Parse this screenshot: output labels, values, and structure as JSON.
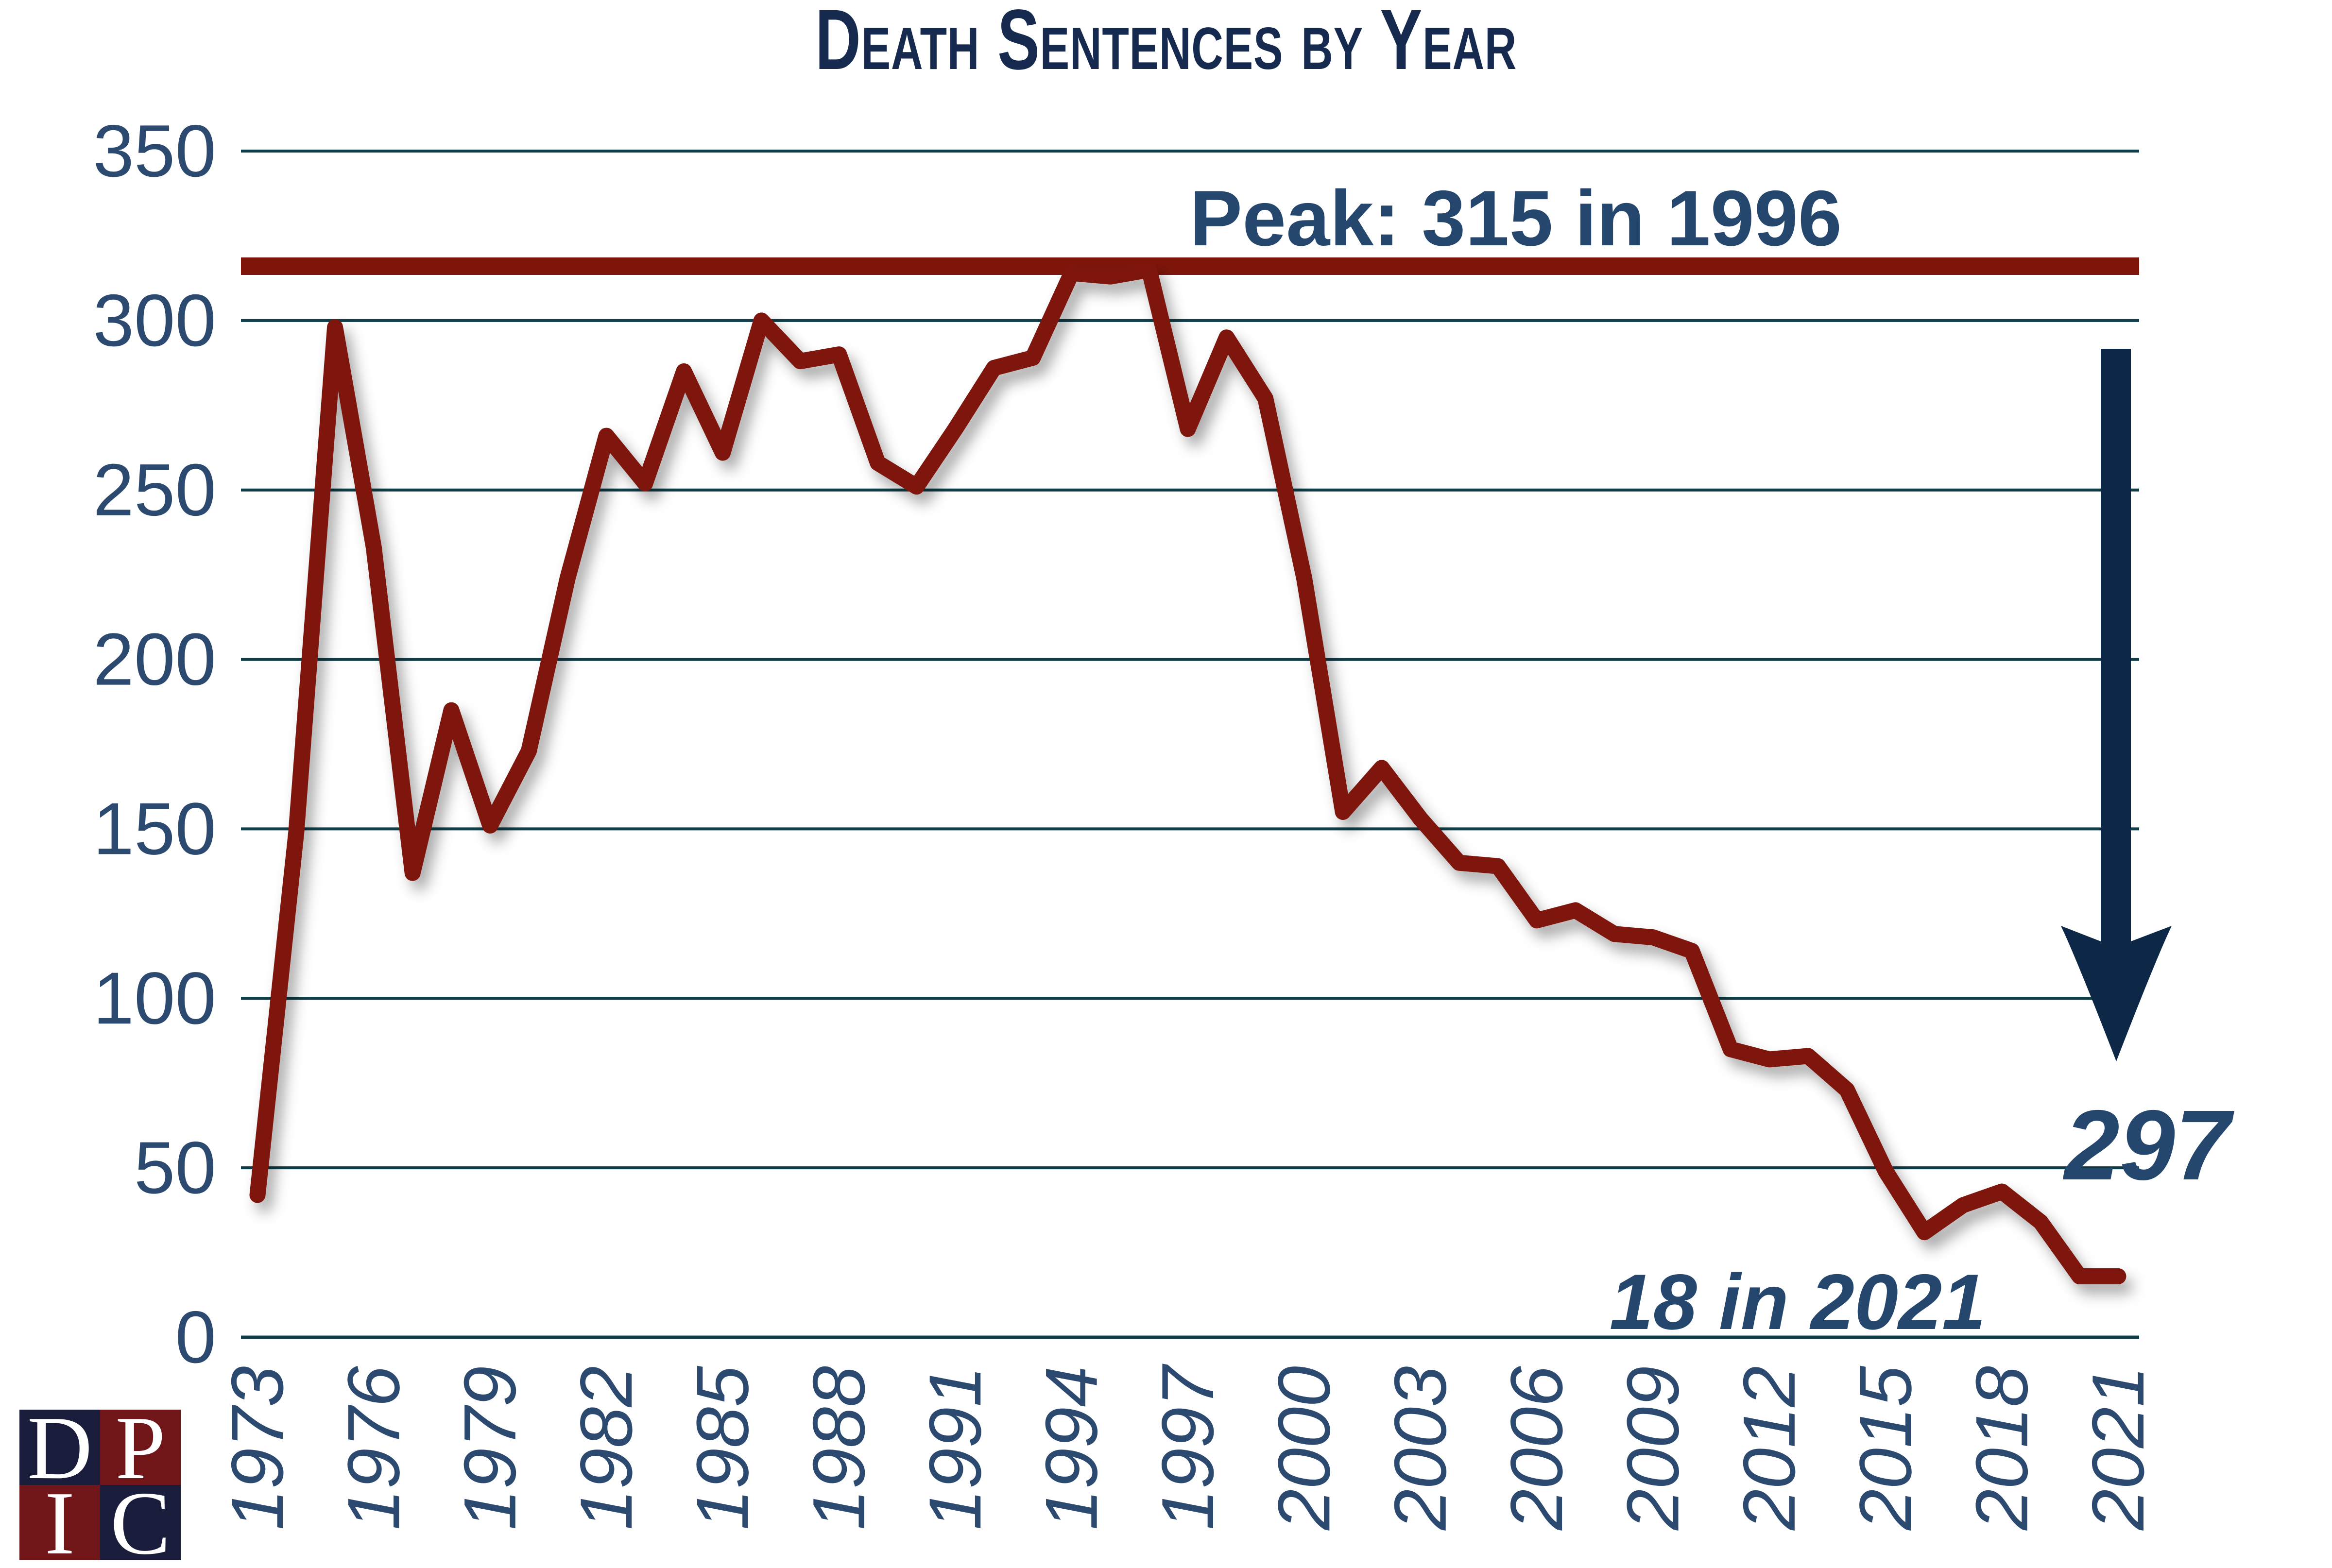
{
  "title": "Death Sentences by Year",
  "annotations": {
    "peak_label": "Peak: 315 in 1996",
    "drop_value": "297",
    "latest_label": "18 in 2021"
  },
  "logo": {
    "letters": [
      "D",
      "P",
      "I",
      "C"
    ]
  },
  "colors": {
    "line_red": "#7e150a",
    "peak_line_red": "#7e150a",
    "gridline_teal": "#0f3d48",
    "title_navy": "#152a4e",
    "axis_label_blue": "#2c4a70",
    "annotation_blue": "#26476d",
    "arrow_navy": "#0d2847",
    "logo_navy": "#191d3b",
    "logo_red": "#701518",
    "background": "#ffffff"
  },
  "chart_data": {
    "type": "line",
    "title": "Death Sentences by Year",
    "series_name": "Death Sentences",
    "x": [
      1973,
      1974,
      1975,
      1976,
      1977,
      1978,
      1979,
      1980,
      1981,
      1982,
      1983,
      1984,
      1985,
      1986,
      1987,
      1988,
      1989,
      1990,
      1991,
      1992,
      1993,
      1994,
      1995,
      1996,
      1997,
      1998,
      1999,
      2000,
      2001,
      2002,
      2003,
      2004,
      2005,
      2006,
      2007,
      2008,
      2009,
      2010,
      2011,
      2012,
      2013,
      2014,
      2015,
      2016,
      2017,
      2018,
      2019,
      2020,
      2021
    ],
    "values": [
      42,
      149,
      298,
      233,
      137,
      185,
      151,
      173,
      224,
      266,
      252,
      285,
      261,
      300,
      288,
      290,
      258,
      251,
      268,
      286,
      289,
      314,
      313,
      315,
      268,
      295,
      277,
      224,
      155,
      168,
      153,
      140,
      139,
      123,
      126,
      119,
      118,
      114,
      85,
      82,
      83,
      73,
      49,
      31,
      39,
      43,
      34,
      18,
      18
    ],
    "x_tick_labels": [
      1973,
      1976,
      1979,
      1982,
      1985,
      1988,
      1991,
      1994,
      1997,
      2000,
      2003,
      2006,
      2009,
      2012,
      2015,
      2018,
      2021
    ],
    "yticks": [
      0,
      50,
      100,
      150,
      200,
      250,
      300,
      350
    ],
    "ylim": [
      0,
      350
    ],
    "xlabel": "",
    "ylabel": "",
    "grid": "horizontal",
    "legend": "none",
    "reference_line_value": 315
  }
}
